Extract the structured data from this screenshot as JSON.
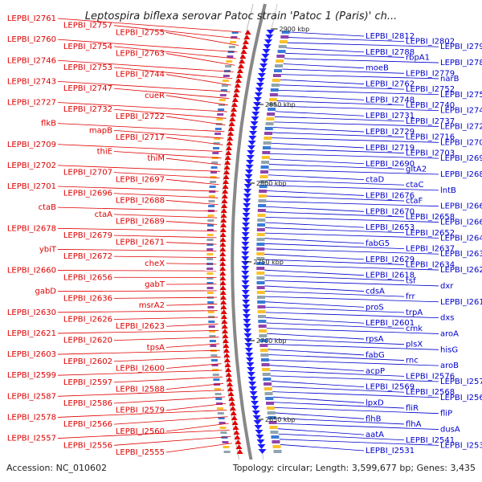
{
  "title": "Leptospira biflexa serovar Patoc strain 'Patoc 1 (Paris)' ch...",
  "footer": {
    "accession": "Accession: NC_010602",
    "topology": "Topology: circular; Length: 3,599,677 bp; Genes: 3,435"
  },
  "ticks": [
    "2900 kbp",
    "2850 kbp",
    "2800 kbp",
    "2750 kbp",
    "2700 kbp",
    "2650 kbp"
  ],
  "left_labels": [
    "LEPBI_I2761",
    "LEPBI_I2757",
    "LEPBI_I2755",
    "LEPBI_I2760",
    "LEPBI_I2754",
    "LEPBI_I2763",
    "LEPBI_I2746",
    "LEPBI_I2753",
    "LEPBI_I2744",
    "LEPBI_I2743",
    "LEPBI_I2747",
    "cueR",
    "LEPBI_I2727",
    "LEPBI_I2732",
    "LEPBI_I2722",
    "flkB",
    "mapB",
    "LEPBI_I2717",
    "LEPBI_I2709",
    "thiE",
    "thiM",
    "LEPBI_I2702",
    "LEPBI_I2707",
    "LEPBI_I2697",
    "LEPBI_I2701",
    "LEPBI_I2696",
    "LEPBI_I2688",
    "ctaB",
    "ctaA",
    "LEPBI_I2689",
    "LEPBI_I2678",
    "LEPBI_I2679",
    "LEPBI_I2671",
    "ybiT",
    "LEPBI_I2672",
    "cheX",
    "LEPBI_I2660",
    "LEPBI_I2656",
    "gabT",
    "gabD",
    "LEPBI_I2636",
    "msrA2",
    "LEPBI_I2630",
    "LEPBI_I2626",
    "LEPBI_I2623",
    "LEPBI_I2621",
    "LEPBI_I2620",
    "tpsA",
    "LEPBI_I2603",
    "LEPBI_I2602",
    "LEPBI_I2600",
    "LEPBI_I2599",
    "LEPBI_I2597",
    "LEPBI_I2588",
    "LEPBI_I2587",
    "LEPBI_I2586",
    "LEPBI_I2579",
    "LEPBI_I2578",
    "LEPBI_I2566",
    "LEPBI_I2560",
    "LEPBI_I2557",
    "LEPBI_I2556",
    "LEPBI_I2555"
  ],
  "right_labels": [
    "LEPBI_I2812",
    "LEPBI_I2802",
    "LEPBI_I2797",
    "LEPBI_I2788",
    "rbpA1",
    "LEPBI_I2784",
    "moeB",
    "LEPBI_I2779",
    "narB",
    "LEPBI_I2762",
    "LEPBI_I2752",
    "LEPBI_I2758",
    "LEPBI_I2748",
    "LEPBI_I2740",
    "LEPBI_I2749",
    "LEPBI_I2731",
    "LEPBI_I2737",
    "LEPBI_I2721",
    "LEPBI_I2729",
    "LEPBI_I2716",
    "LEPBI_I2705",
    "LEPBI_I2719",
    "LEPBI_I2703",
    "LEPBI_I2695",
    "LEPBI_I2690",
    "gltA2",
    "LEPBI_I2680",
    "ctaD",
    "ctaC",
    "lntB",
    "LEPBI_I2676",
    "ctaF",
    "LEPBI_I2666",
    "LEPBI_I2670",
    "LEPBI_I2658",
    "LEPBI_I2662",
    "LEPBI_I2653",
    "LEPBI_I2652",
    "LEPBI_I2646",
    "fabG5",
    "LEPBI_I2637",
    "LEPBI_I2639",
    "LEPBI_I2629",
    "LEPBI_I2634",
    "LEPBI_I2622",
    "LEPBI_I2618",
    "tsf",
    "dxr",
    "cdsA",
    "frr",
    "LEPBI_I2610",
    "proS",
    "trpA",
    "dxs",
    "LEPBI_I2601",
    "cmk",
    "aroA",
    "rpsA",
    "plsX",
    "hisG",
    "fabG",
    "rnc",
    "aroB",
    "acpP",
    "LEPBI_I2576",
    "LEPBI_I2575",
    "LEPBI_I2569",
    "LEPBI_I2568",
    "LEPBI_I2561",
    "lpxD",
    "fliR",
    "fliP",
    "flhB",
    "flhA",
    "dusA",
    "aatA",
    "LEPBI_I2541",
    "LEPBI_I2538",
    "LEPBI_I2531"
  ]
}
